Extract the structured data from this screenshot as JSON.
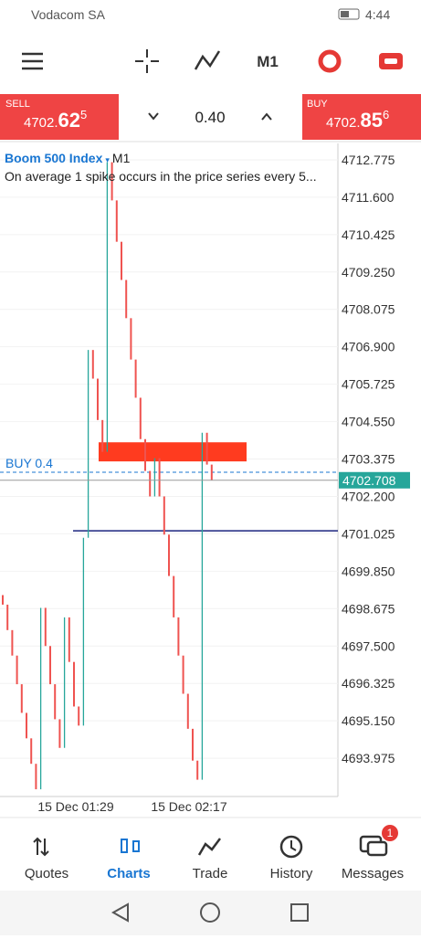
{
  "status_bar": {
    "carrier": "Vodacom SA",
    "time": "4:44"
  },
  "toolbar": {
    "timeframe": "M1"
  },
  "trade_panel": {
    "sell": {
      "label": "SELL",
      "price_main": "4702.",
      "price_big": "62",
      "price_sup": "5"
    },
    "lot": "0.40",
    "buy": {
      "label": "BUY",
      "price_main": "4702.",
      "price_big": "85",
      "price_sup": "6"
    }
  },
  "chart": {
    "symbol": "Boom 500 Index",
    "timeframe": "M1",
    "description": "On average 1 spike occurs in the price series every 5...",
    "ylim": [
      4692.83,
      4713.29
    ],
    "yticks": [
      4712.775,
      {
        "value": 4711.6,
        "label": "4711.600"
      },
      4710.425,
      {
        "value": 4709.25,
        "label": "4709.250"
      },
      4708.075,
      {
        "value": 4706.9,
        "label": "4706.900"
      },
      4705.725,
      {
        "value": 4704.55,
        "label": "4704.550"
      },
      4703.375,
      {
        "value": 4702.2,
        "label": "4702.200"
      },
      4701.025,
      {
        "value": 4699.85,
        "label": "4699.850"
      },
      4698.675,
      {
        "value": 4697.5,
        "label": "4697.500"
      },
      4696.325,
      {
        "value": 4695.15,
        "label": "4695.150"
      },
      4693.975
    ],
    "closes": [
      4698.8,
      4698.0,
      4697.2,
      4696.3,
      4695.4,
      4694.6,
      4693.8,
      4693.0,
      4698.7,
      4697.5,
      4696.3,
      4695.2,
      4694.3,
      4698.4,
      4697.0,
      4695.6,
      4695.0,
      4700.9,
      4706.8,
      4705.9,
      4704.6,
      4703.6,
      4712.7,
      4711.5,
      4710.2,
      4709.0,
      4707.8,
      4706.5,
      4705.3,
      4704.0,
      4703.0,
      4702.2,
      4703.4,
      4702.2,
      4701.0,
      4699.7,
      4698.4,
      4697.2,
      4696.0,
      4694.9,
      4693.9,
      4693.3,
      4704.2,
      4703.2,
      4702.708
    ],
    "bid": 4702.708,
    "position": {
      "label": "BUY 0.4",
      "price": 4702.96
    },
    "level_line": 4701.12,
    "time_labels": [
      "15 Dec 01:29",
      "15 Dec 02:17"
    ]
  },
  "bottom_nav": {
    "items": [
      "Quotes",
      "Charts",
      "Trade",
      "History",
      "Messages"
    ],
    "badge": "1"
  }
}
